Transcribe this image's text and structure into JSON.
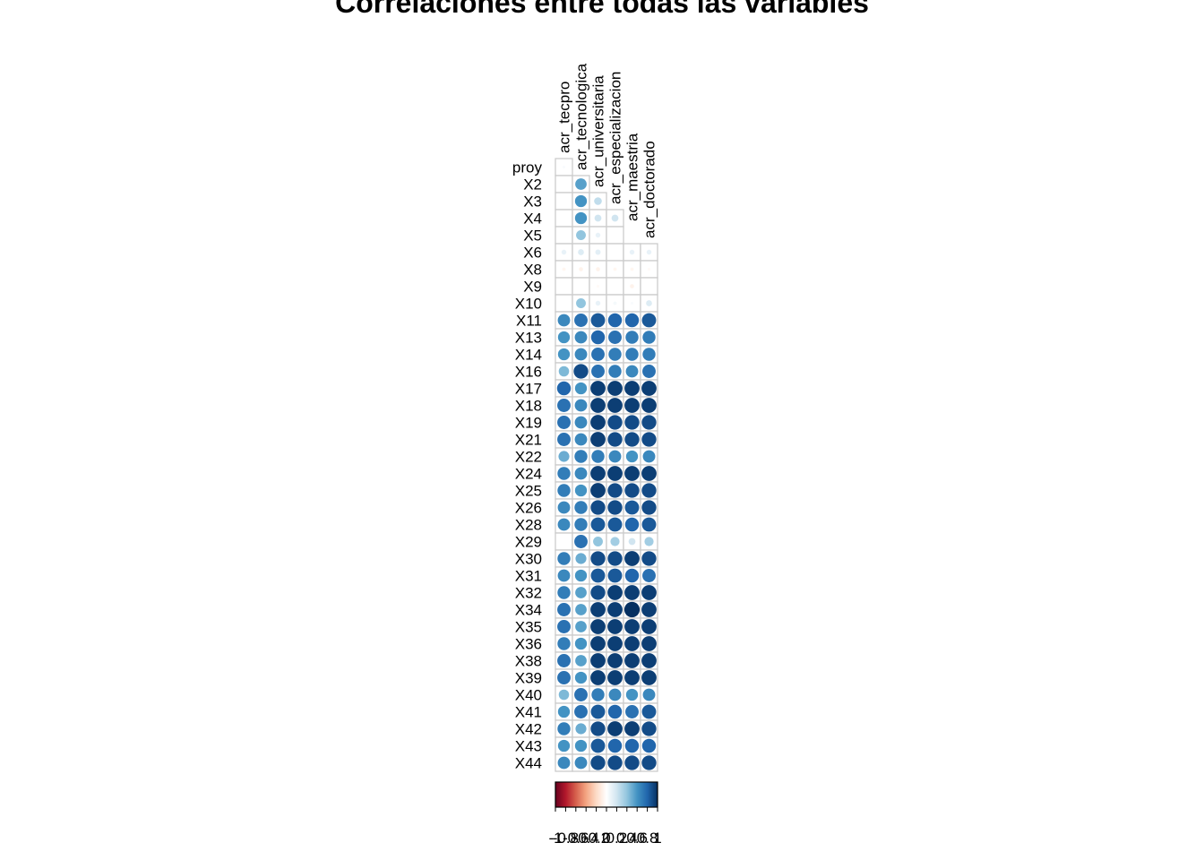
{
  "chart_data": {
    "type": "heatmap",
    "title": "Correlaciones entre todas las variables",
    "columns": [
      "acr_tecpro",
      "acr_tecnologica",
      "acr_universitaria",
      "acr_especializacion",
      "acr_maestria",
      "acr_doctorado"
    ],
    "rows": [
      "proy",
      "X2",
      "X3",
      "X4",
      "X5",
      "X6",
      "X8",
      "X9",
      "X10",
      "X11",
      "X13",
      "X14",
      "X16",
      "X17",
      "X18",
      "X19",
      "X21",
      "X22",
      "X24",
      "X25",
      "X26",
      "X28",
      "X29",
      "X30",
      "X31",
      "X32",
      "X34",
      "X35",
      "X36",
      "X38",
      "X39",
      "X40",
      "X41",
      "X42",
      "X43",
      "X44"
    ],
    "values": [
      [
        0.03,
        null,
        null,
        null,
        null,
        null
      ],
      [
        0.0,
        0.55,
        null,
        null,
        null,
        null
      ],
      [
        0.0,
        0.6,
        0.25,
        null,
        null,
        null
      ],
      [
        0.0,
        0.6,
        0.2,
        0.2,
        null,
        null
      ],
      [
        0.0,
        0.4,
        0.1,
        0.0,
        null,
        null
      ],
      [
        0.1,
        0.15,
        0.12,
        0.0,
        0.1,
        0.1
      ],
      [
        -0.05,
        -0.07,
        -0.07,
        -0.05,
        -0.05,
        -0.03
      ],
      [
        0.0,
        0.0,
        -0.03,
        0.0,
        -0.07,
        0.0
      ],
      [
        0.0,
        0.4,
        0.1,
        0.05,
        0.03,
        0.15
      ],
      [
        0.65,
        0.75,
        0.85,
        0.8,
        0.8,
        0.85
      ],
      [
        0.6,
        0.65,
        0.8,
        0.75,
        0.7,
        0.7
      ],
      [
        0.6,
        0.65,
        0.75,
        0.7,
        0.7,
        0.7
      ],
      [
        0.45,
        0.9,
        0.75,
        0.7,
        0.65,
        0.75
      ],
      [
        0.8,
        0.6,
        0.95,
        0.95,
        0.95,
        0.95
      ],
      [
        0.75,
        0.65,
        0.95,
        0.95,
        0.95,
        0.95
      ],
      [
        0.75,
        0.65,
        0.95,
        0.9,
        0.9,
        0.9
      ],
      [
        0.75,
        0.65,
        0.95,
        0.9,
        0.9,
        0.9
      ],
      [
        0.5,
        0.7,
        0.7,
        0.65,
        0.6,
        0.65
      ],
      [
        0.7,
        0.65,
        0.95,
        0.95,
        0.95,
        0.95
      ],
      [
        0.7,
        0.6,
        0.95,
        0.9,
        0.9,
        0.9
      ],
      [
        0.65,
        0.7,
        0.9,
        0.9,
        0.85,
        0.9
      ],
      [
        0.65,
        0.7,
        0.85,
        0.85,
        0.8,
        0.85
      ],
      [
        0.0,
        0.75,
        0.4,
        0.35,
        0.2,
        0.35
      ],
      [
        0.7,
        0.5,
        0.9,
        0.9,
        0.95,
        0.9
      ],
      [
        0.65,
        0.6,
        0.85,
        0.85,
        0.8,
        0.75
      ],
      [
        0.7,
        0.55,
        0.9,
        0.95,
        0.95,
        0.95
      ],
      [
        0.75,
        0.55,
        0.95,
        0.95,
        1.0,
        0.95
      ],
      [
        0.75,
        0.55,
        0.95,
        0.95,
        0.95,
        0.95
      ],
      [
        0.7,
        0.6,
        0.95,
        0.95,
        0.95,
        0.95
      ],
      [
        0.75,
        0.55,
        0.95,
        0.95,
        0.95,
        0.95
      ],
      [
        0.75,
        0.6,
        0.95,
        0.95,
        0.95,
        0.95
      ],
      [
        0.45,
        0.75,
        0.7,
        0.65,
        0.6,
        0.65
      ],
      [
        0.6,
        0.75,
        0.85,
        0.8,
        0.75,
        0.85
      ],
      [
        0.7,
        0.5,
        0.9,
        0.95,
        0.95,
        0.9
      ],
      [
        0.6,
        0.6,
        0.85,
        0.8,
        0.8,
        0.8
      ],
      [
        0.65,
        0.65,
        0.9,
        0.9,
        0.9,
        0.9
      ]
    ],
    "legend": {
      "position": "bottom",
      "range": [
        -1,
        1
      ],
      "tick_labels": [
        "-1",
        "-0.8",
        "-0.6",
        "-0.4",
        "-0.2",
        "0",
        "0.2",
        "0.4",
        "0.6",
        "0.8",
        "1"
      ],
      "colors": [
        "#67001F",
        "#B2182B",
        "#D6604D",
        "#F4A582",
        "#FDDBC7",
        "#FFFFFF",
        "#D1E5F0",
        "#92C5DE",
        "#4393C3",
        "#2166AC",
        "#053061"
      ]
    },
    "grid": true
  }
}
